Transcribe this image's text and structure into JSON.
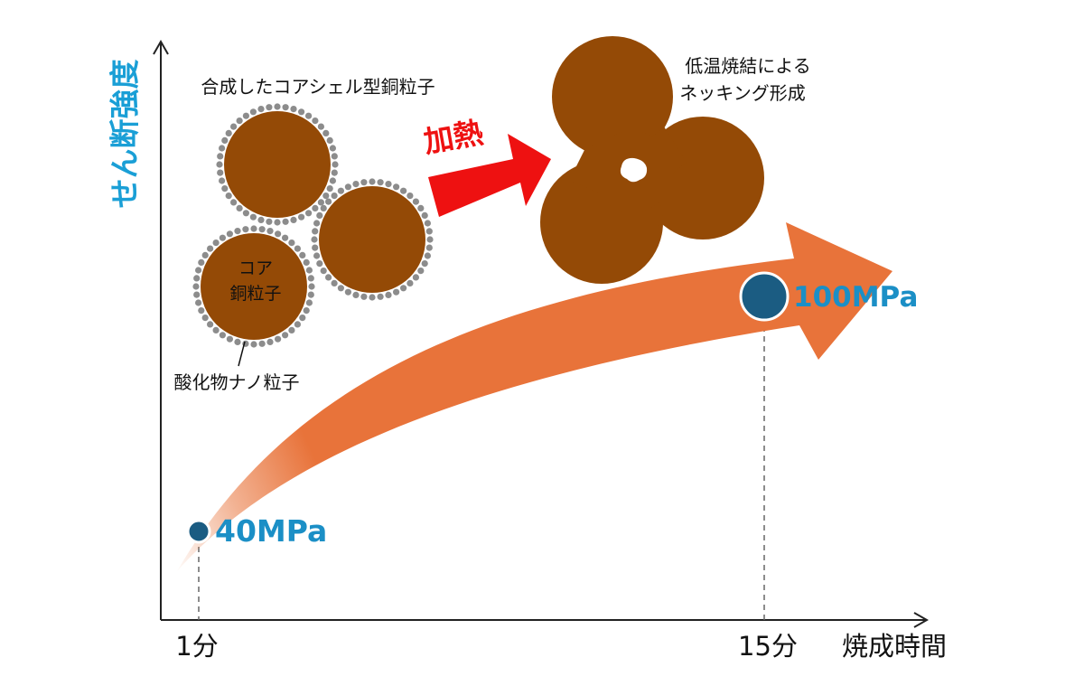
{
  "axes": {
    "y_label": "せん断強度",
    "x_label": "焼成時間",
    "x_ticks": [
      "1分",
      "15分"
    ]
  },
  "labels": {
    "core_shell_title": "合成したコアシェル型銅粒子",
    "core_line1": "コア",
    "core_line2": "銅粒子",
    "shell_label": "酸化物ナノ粒子",
    "heating": "加熱",
    "sinter_line1": "低温焼結による",
    "sinter_line2": "ネッキング形成"
  },
  "chart_data": {
    "type": "scatter",
    "xlabel": "焼成時間",
    "ylabel": "せん断強度",
    "points": [
      {
        "x": "1分",
        "label": "40MPa",
        "value": 40,
        "unit": "MPa"
      },
      {
        "x": "15分",
        "label": "100MPa",
        "value": 100,
        "unit": "MPa"
      }
    ]
  },
  "colors": {
    "axis_label": "#1a9fd6",
    "value_label": "#1b8fc6",
    "point": "#1b5c82",
    "copper": "#944a06",
    "shell_dot": "#8c8c8c",
    "heat_arrow": "#ee1111",
    "trend_arrow": "#e8733a"
  }
}
